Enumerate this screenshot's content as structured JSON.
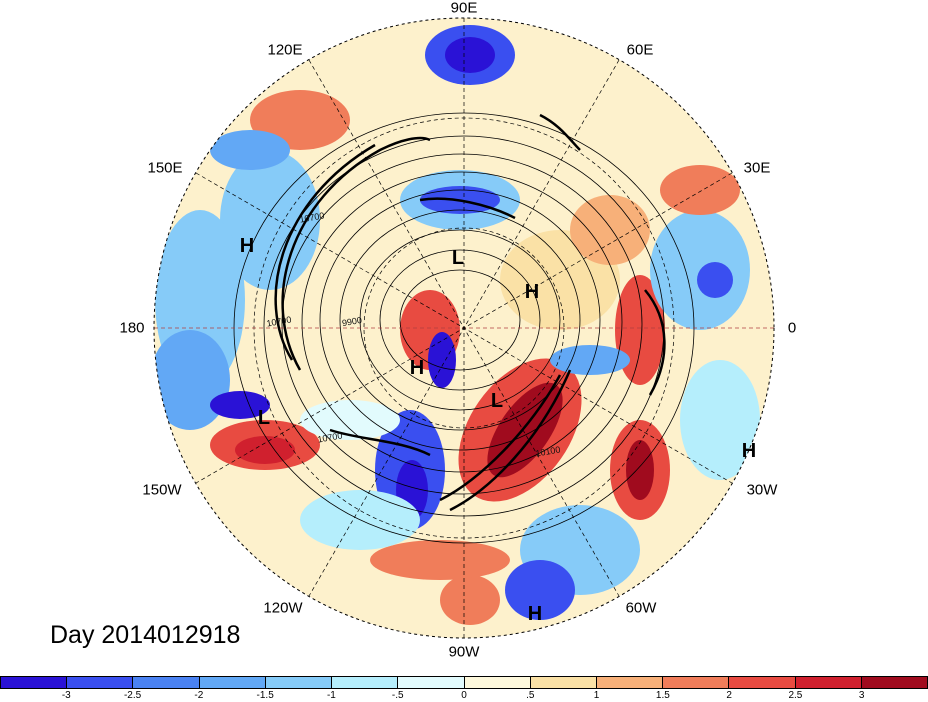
{
  "title": "Day 2014012918",
  "longitude_labels": {
    "lon_90e": "90E",
    "lon_120e": "120E",
    "lon_60e": "60E",
    "lon_150e": "150E",
    "lon_30e": "30E",
    "lon_180": "180",
    "lon_0": "0",
    "lon_150w": "150W",
    "lon_30w": "30W",
    "lon_120w": "120W",
    "lon_60w": "60W",
    "lon_90w": "90W"
  },
  "pressure_centers": [
    {
      "label": "H"
    },
    {
      "label": "L"
    },
    {
      "label": "H"
    },
    {
      "label": "H"
    },
    {
      "label": "L"
    },
    {
      "label": "L"
    },
    {
      "label": "H"
    },
    {
      "label": "H"
    }
  ],
  "contour_labels": [
    "10700",
    "10700",
    "9900",
    "10700",
    "10100"
  ],
  "colorbar": {
    "ticks": [
      "-3",
      "-2.5",
      "-2",
      "-1.5",
      "-1",
      "-.5",
      "0",
      ".5",
      "1",
      "1.5",
      "2",
      "2.5",
      "3"
    ],
    "colors": [
      "#2a12d6",
      "#3a4ff0",
      "#4a82f2",
      "#62a8f5",
      "#86cbf8",
      "#b5eefc",
      "#e2fbfd",
      "#fdf8dc",
      "#fae1a6",
      "#f7b079",
      "#f07d5a",
      "#e84b41",
      "#d0202e",
      "#a00b1e"
    ]
  }
}
